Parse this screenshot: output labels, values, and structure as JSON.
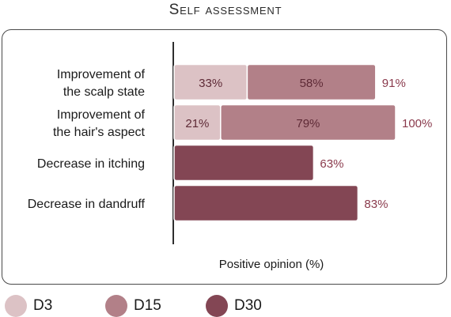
{
  "title": "Self assessment",
  "colors": {
    "D3": "#dcc2c5",
    "D15": "#b28088",
    "D30": "#834654",
    "label_value": "#8a3a4c",
    "segment_text": "#5e2a36"
  },
  "chart_data": {
    "type": "bar",
    "orientation": "horizontal",
    "stacked": true,
    "xlabel": "Positive opinion (%)",
    "xlim": [
      0,
      100
    ],
    "categories": [
      [
        "Improvement of",
        "the scalp state"
      ],
      [
        "Improvement of",
        "the hair's aspect"
      ],
      [
        "Decrease in itching"
      ],
      [
        "Decrease in dandruff"
      ]
    ],
    "series": [
      {
        "name": "D3",
        "values": [
          33,
          21,
          null,
          null
        ]
      },
      {
        "name": "D15",
        "values": [
          58,
          79,
          null,
          null
        ]
      },
      {
        "name": "D30",
        "values": [
          null,
          null,
          63,
          83
        ]
      }
    ],
    "segment_labels": [
      [
        "33%",
        "58%",
        null
      ],
      [
        "21%",
        "79%",
        null
      ],
      [
        null,
        null,
        null
      ],
      [
        null,
        null,
        null
      ]
    ],
    "totals": [
      91,
      100,
      63,
      83
    ],
    "total_labels": [
      "91%",
      "100%",
      "63%",
      "83%"
    ],
    "legend": [
      "D3",
      "D15",
      "D30"
    ],
    "legend_position": "bottom",
    "grid": false
  }
}
